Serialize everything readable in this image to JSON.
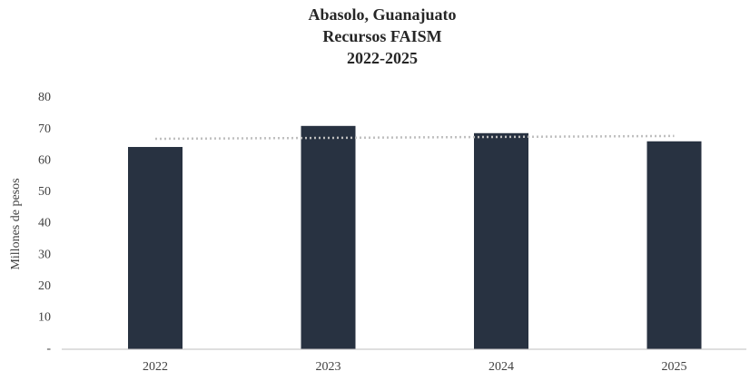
{
  "chart_data": {
    "type": "bar",
    "title": [
      "Abasolo, Guanajuato",
      "Recursos FAISM",
      "2022-2025"
    ],
    "ylabel": "Millones de pesos",
    "categories": [
      "2022",
      "2023",
      "2024",
      "2025"
    ],
    "values": [
      64.4,
      71.1,
      68.8,
      66.2
    ],
    "color": "#283241",
    "trendline": {
      "values": [
        67.0,
        67.3,
        67.6,
        67.9
      ],
      "color": "#bfbfbf"
    },
    "ylim": [
      0,
      80
    ],
    "yticks": [
      {
        "value": 0,
        "label": "-"
      },
      10,
      20,
      30,
      40,
      50,
      60,
      70,
      80
    ],
    "grid": false
  }
}
